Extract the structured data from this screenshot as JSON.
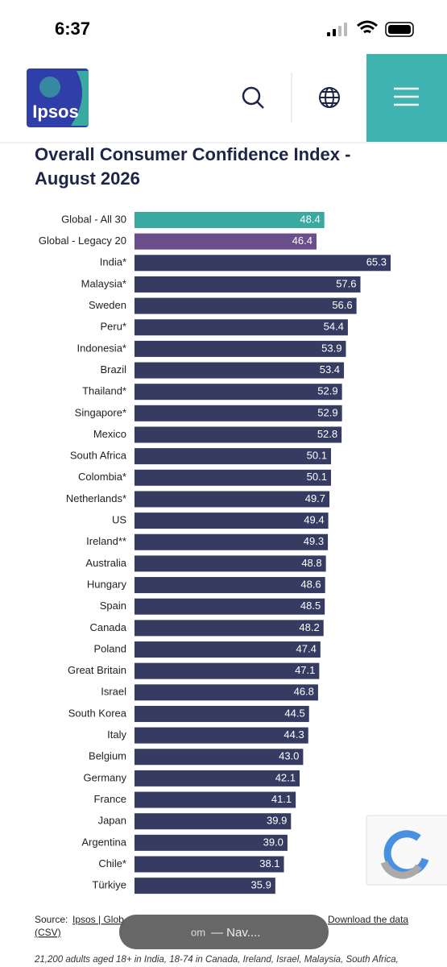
{
  "status_bar": {
    "time": "6:37"
  },
  "header": {
    "logo": "Ipsos"
  },
  "chart_data": {
    "type": "bar",
    "orientation": "horizontal",
    "title": "Overall Consumer Confidence Index - August 2026",
    "categories": [
      "Global - All 30",
      "Global - Legacy 20",
      "India*",
      "Malaysia*",
      "Sweden",
      "Peru*",
      "Indonesia*",
      "Brazil",
      "Thailand*",
      "Singapore*",
      "Mexico",
      "South Africa",
      "Colombia*",
      "Netherlands*",
      "US",
      "Ireland**",
      "Australia",
      "Hungary",
      "Spain",
      "Canada",
      "Poland",
      "Great Britain",
      "Israel",
      "South Korea",
      "Italy",
      "Belgium",
      "Germany",
      "France",
      "Japan",
      "Argentina",
      "Chile*",
      "Türkiye"
    ],
    "values": [
      48.4,
      46.4,
      65.3,
      57.6,
      56.6,
      54.4,
      53.9,
      53.4,
      52.9,
      52.9,
      52.8,
      50.1,
      50.1,
      49.7,
      49.4,
      49.3,
      48.8,
      48.6,
      48.5,
      48.2,
      47.4,
      47.1,
      46.8,
      44.5,
      44.3,
      43.0,
      42.1,
      41.1,
      39.9,
      39.0,
      38.1,
      35.9
    ],
    "value_labels": [
      "48.4",
      "46.4",
      "65.3",
      "57.6",
      "56.6",
      "54.4",
      "53.9",
      "53.4",
      "52.9",
      "52.9",
      "52.8",
      "50.1",
      "50.1",
      "49.7",
      "49.4",
      "49.3",
      "48.8",
      "48.6",
      "48.5",
      "48.2",
      "47.4",
      "47.1",
      "46.8",
      "44.5",
      "44.3",
      "43.0",
      "42.1",
      "41.1",
      "39.9",
      "39.0",
      "38.1",
      "35.9"
    ],
    "colors": [
      "#3aa9a0",
      "#6b4e8c",
      "#363b62",
      "#363b62",
      "#363b62",
      "#363b62",
      "#363b62",
      "#363b62",
      "#363b62",
      "#363b62",
      "#363b62",
      "#363b62",
      "#363b62",
      "#363b62",
      "#363b62",
      "#363b62",
      "#363b62",
      "#363b62",
      "#363b62",
      "#363b62",
      "#363b62",
      "#363b62",
      "#363b62",
      "#363b62",
      "#363b62",
      "#363b62",
      "#363b62",
      "#363b62",
      "#363b62",
      "#363b62",
      "#363b62",
      "#363b62"
    ]
  },
  "source": {
    "label": "Source:",
    "link": "Ipsos | Glob",
    "download": "Download the data",
    "csv": "(CSV)"
  },
  "overlay": {
    "left": "om",
    "right": "— Nav...."
  },
  "note": "21,200 adults aged 18+ in India, 18-74 in Canada, Ireland, Israel, Malaysia, South Africa,"
}
